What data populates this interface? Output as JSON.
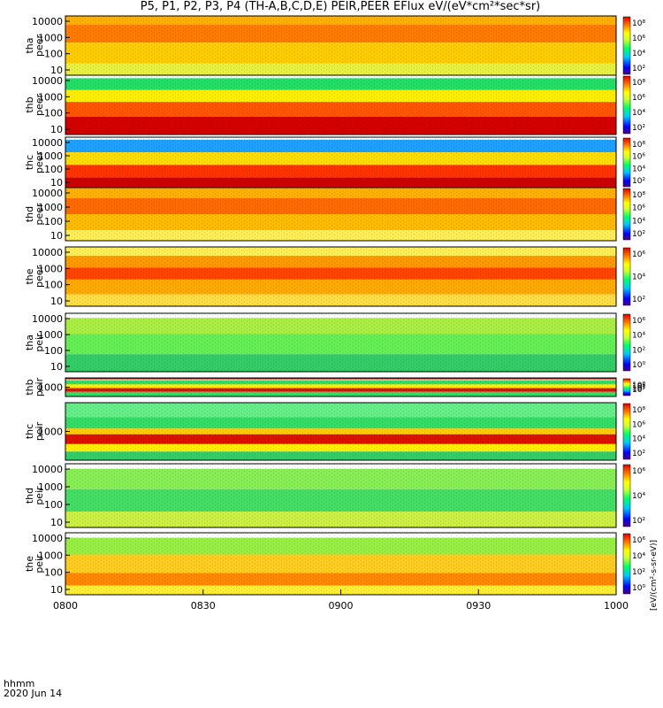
{
  "title": "P5, P1, P2, P3, P4 (TH-A,B,C,D,E) PEIR,PEER EFlux eV/(eV*cm²*sec*sr)",
  "footer": {
    "tag": "hhmm",
    "date": "2020 Jun 14"
  },
  "colorbar_label": "[eV/(cm²-s-sr-eV)]",
  "chart_data": {
    "type": "heatmap",
    "x_ticks": [
      "0800",
      "0830",
      "0900",
      "0930",
      "1000"
    ],
    "x_range": [
      "0800",
      "1000"
    ],
    "colorscale": "rainbow",
    "panels": [
      {
        "probe": "tha",
        "instrument": "peer",
        "ylabel": "tha peer",
        "y_ticks": [
          "10000",
          "1000",
          "100",
          "10"
        ],
        "cbar_ticks": [
          "10⁸",
          "10⁶",
          "10⁴",
          "10²"
        ]
      },
      {
        "probe": "thb",
        "instrument": "peer",
        "ylabel": "thb peer",
        "y_ticks": [
          "10000",
          "1000",
          "100",
          "10"
        ],
        "cbar_ticks": [
          "10⁸",
          "10⁶",
          "10⁴",
          "10²"
        ]
      },
      {
        "probe": "thc",
        "instrument": "peer",
        "ylabel": "thc peer",
        "y_ticks": [
          "10000",
          "1000",
          "100",
          "10"
        ],
        "cbar_ticks": [
          "10⁸",
          "10⁶",
          "10⁴",
          "10²"
        ]
      },
      {
        "probe": "thd",
        "instrument": "peer",
        "ylabel": "thd peer",
        "y_ticks": [
          "10000",
          "1000",
          "100",
          "10"
        ],
        "cbar_ticks": [
          "10⁸",
          "10⁶",
          "10⁴",
          "10²"
        ]
      },
      {
        "probe": "the",
        "instrument": "peer",
        "ylabel": "the peer",
        "y_ticks": [
          "10000",
          "1000",
          "100",
          "10"
        ],
        "cbar_ticks": [
          "10⁶",
          "10⁴",
          "10²"
        ]
      },
      {
        "probe": "tha",
        "instrument": "peir",
        "ylabel": "tha peir",
        "y_ticks": [
          "10000",
          "1000",
          "100",
          "10"
        ],
        "cbar_ticks": [
          "10⁶",
          "10⁴",
          "10²",
          "10⁰"
        ]
      },
      {
        "probe": "thb",
        "instrument": "peir",
        "ylabel": "thb peir",
        "y_ticks": [
          "1000"
        ],
        "cbar_ticks": [
          "10⁸",
          "10⁶",
          "10⁴",
          "10²"
        ]
      },
      {
        "probe": "thc",
        "instrument": "peir",
        "ylabel": "thc peir",
        "y_ticks": [
          "1000"
        ],
        "cbar_ticks": [
          "10⁸",
          "10⁶",
          "10⁴",
          "10²"
        ]
      },
      {
        "probe": "thd",
        "instrument": "peir",
        "ylabel": "thd peir",
        "y_ticks": [
          "10000",
          "1000",
          "100",
          "10"
        ],
        "cbar_ticks": [
          "10⁶",
          "10⁴",
          "10²"
        ]
      },
      {
        "probe": "the",
        "instrument": "peir",
        "ylabel": "the peir",
        "y_ticks": [
          "10000",
          "1000",
          "100",
          "10"
        ],
        "cbar_ticks": [
          "10⁶",
          "10⁴",
          "10²",
          "10⁰"
        ]
      }
    ]
  }
}
